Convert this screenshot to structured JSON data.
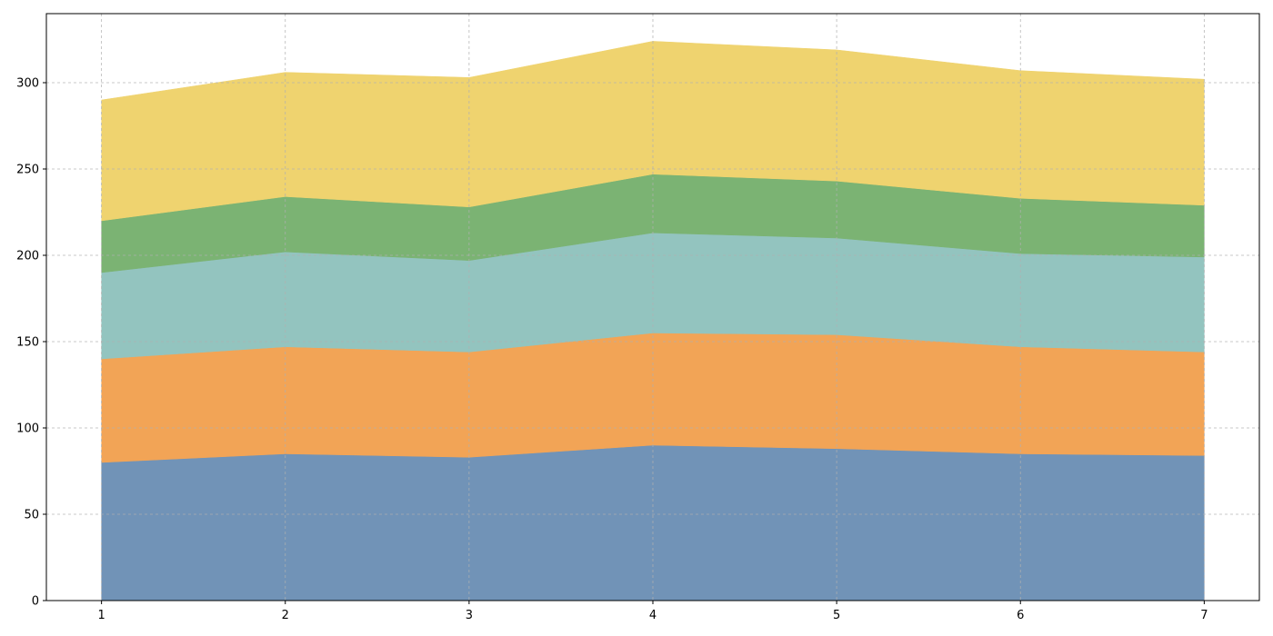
{
  "chart_data": {
    "type": "area",
    "stacked": true,
    "title": "",
    "xlabel": "",
    "ylabel": "",
    "x": [
      1,
      2,
      3,
      4,
      5,
      6,
      7
    ],
    "xlim": [
      0.7,
      7.3
    ],
    "ylim": [
      0,
      340
    ],
    "xticks": [
      1,
      2,
      3,
      4,
      5,
      6,
      7
    ],
    "yticks": [
      0,
      50,
      100,
      150,
      200,
      250,
      300
    ],
    "grid": true,
    "legend": "none",
    "series": [
      {
        "color": "#7193b7",
        "values": [
          80,
          85,
          83,
          90,
          88,
          85,
          84
        ]
      },
      {
        "color": "#f2a456",
        "values": [
          60,
          62,
          61,
          65,
          66,
          62,
          60
        ]
      },
      {
        "color": "#93c4bf",
        "values": [
          50,
          55,
          53,
          58,
          56,
          54,
          55
        ]
      },
      {
        "color": "#7bb373",
        "values": [
          30,
          32,
          31,
          34,
          33,
          32,
          30
        ]
      },
      {
        "color": "#efd36f",
        "values": [
          70,
          72,
          75,
          77,
          76,
          74,
          73
        ]
      }
    ]
  }
}
